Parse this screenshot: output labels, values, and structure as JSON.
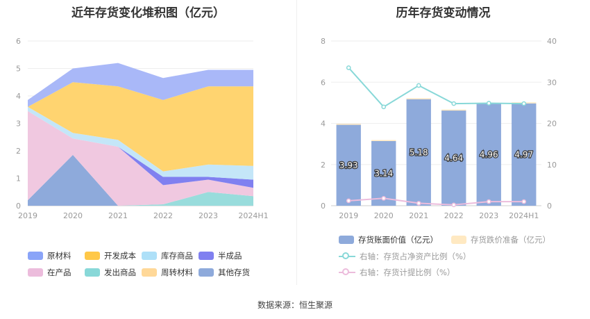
{
  "source": "数据来源：恒生聚源",
  "chart_data": [
    {
      "type": "area",
      "title": "近年存货变化堆积图（亿元）",
      "categories": [
        "2019",
        "2020",
        "2021",
        "2022",
        "2023",
        "2024H1"
      ],
      "ylim": [
        0,
        6
      ],
      "yticks": [
        "0",
        "1",
        "2",
        "3",
        "4",
        "5",
        "6"
      ],
      "series": [
        {
          "name": "其他存货",
          "color": "#8eaadb",
          "values": [
            0.2,
            1.85,
            0.0,
            0.0,
            0.0,
            0.0
          ]
        },
        {
          "name": "发出商品",
          "color": "#99dcdc",
          "values": [
            0.0,
            0.0,
            0.0,
            0.05,
            0.5,
            0.35
          ]
        },
        {
          "name": "在产品",
          "color": "#f0c8e0",
          "values": [
            3.25,
            0.6,
            2.15,
            0.7,
            0.45,
            0.3
          ]
        },
        {
          "name": "半成品",
          "color": "#8080f0",
          "values": [
            0.0,
            0.0,
            0.0,
            0.3,
            0.1,
            0.3
          ]
        },
        {
          "name": "库存商品",
          "color": "#c4e6f8",
          "values": [
            0.15,
            0.2,
            0.25,
            0.2,
            0.45,
            0.5
          ]
        },
        {
          "name": "周转材料",
          "color": "#ffe3a8",
          "values": [
            0.0,
            0.0,
            0.0,
            0.0,
            0.0,
            0.0
          ]
        },
        {
          "name": "开发成本",
          "color": "#ffd470",
          "values": [
            0.0,
            1.85,
            1.95,
            2.6,
            2.85,
            2.9
          ]
        },
        {
          "name": "原材料",
          "color": "#a9b8f8",
          "values": [
            0.25,
            0.5,
            0.85,
            0.8,
            0.6,
            0.6
          ]
        }
      ],
      "legend_order": [
        "原材料",
        "开发成本",
        "库存商品",
        "半成品",
        "在产品",
        "发出商品",
        "周转材料",
        "其他存货"
      ],
      "legend_colors": {
        "原材料": "#8aa4f8",
        "开发成本": "#ffc848",
        "库存商品": "#aee0f8",
        "半成品": "#8080f0",
        "在产品": "#ecbcdc",
        "发出商品": "#88d8d8",
        "周转材料": "#ffd898",
        "其他存货": "#8eaadb"
      }
    },
    {
      "type": "bar",
      "title": "历年存货变动情况",
      "categories": [
        "2019",
        "2020",
        "2021",
        "2022",
        "2023",
        "2024H1"
      ],
      "ylim": [
        0,
        8
      ],
      "yticks": [
        "0",
        "2",
        "4",
        "6",
        "8"
      ],
      "y2lim": [
        0,
        40
      ],
      "y2ticks": [
        "0",
        "10",
        "20",
        "30",
        "40"
      ],
      "series": [
        {
          "name": "存货账面价值（亿元）",
          "color": "#8eaadb",
          "values": [
            3.93,
            3.14,
            5.18,
            4.64,
            4.96,
            4.97
          ],
          "labels": [
            "3.93",
            "3.14",
            "5.18",
            "4.64",
            "4.96",
            "4.97"
          ]
        },
        {
          "name": "存货跌价准备（亿元）",
          "color": "#ffe9c2",
          "values": [
            0.05,
            0.05,
            0.04,
            0.03,
            0.04,
            0.05
          ]
        },
        {
          "name": "右轴：存货占净资产比例（%）",
          "axis": "right",
          "color": "#88d8d8",
          "values": [
            33.5,
            24.0,
            29.2,
            24.8,
            24.9,
            24.8
          ]
        },
        {
          "name": "右轴：存货计提比例（%）",
          "axis": "right",
          "color": "#ecbcdc",
          "values": [
            1.2,
            1.8,
            0.6,
            0.2,
            1.0,
            1.0
          ]
        }
      ]
    }
  ]
}
